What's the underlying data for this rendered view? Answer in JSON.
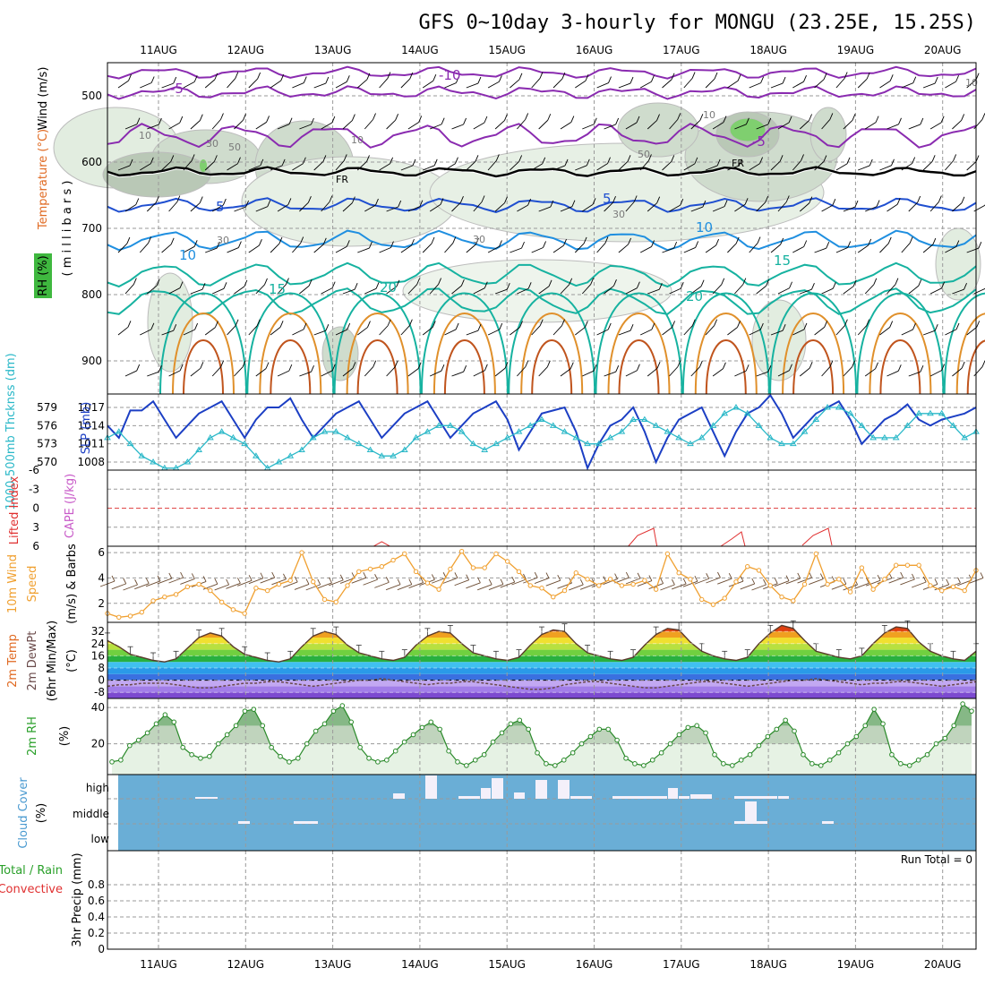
{
  "title": "GFS 0~10day 3-hourly for MONGU (23.25E, 15.25S)",
  "dates": [
    "11AUG",
    "12AUG",
    "13AUG",
    "14AUG",
    "15AUG",
    "16AUG",
    "17AUG",
    "18AUG",
    "19AUG",
    "20AUG"
  ],
  "chart_data": [
    {
      "panel": "upper-air",
      "type": "contour",
      "ylabel_wind": "Wind (m/s)",
      "ylabel_temp": "Temperature (°C)",
      "ylabel_rh": "RH (%)",
      "ylabel_pressure": "( m i l l i b a r s )",
      "ylim": [
        950,
        450
      ],
      "yticks": [
        500,
        600,
        700,
        800,
        900
      ],
      "freezing_label": "FR",
      "temperature_labels": [
        "-10",
        "-5",
        "-5",
        "5",
        "5",
        "10",
        "10",
        "15",
        "15",
        "20",
        "20"
      ],
      "rh_labels": [
        "10",
        "10",
        "10",
        "10",
        "30",
        "30",
        "30",
        "30",
        "50",
        "50"
      ],
      "rh_shading_levels": [
        10,
        30,
        50,
        70
      ]
    },
    {
      "panel": "pressure",
      "type": "line",
      "ylabel_thick": "1000-500mb Thcknss (dm)",
      "ylabel_slp": "SLP (mb)",
      "thickness_ticks": [
        "570",
        "573",
        "576",
        "579"
      ],
      "slp_ticks": [
        "1008",
        "1011",
        "1014",
        "1017"
      ],
      "series": [
        {
          "name": "SLP",
          "values": [
            1014,
            1012,
            1016.5,
            1016.5,
            1018,
            1015,
            1012,
            1014,
            1016,
            1017,
            1018,
            1015,
            1012,
            1015,
            1017,
            1017,
            1018.5,
            1015,
            1012,
            1014,
            1016,
            1017,
            1018,
            1015,
            1012,
            1014,
            1016,
            1017,
            1018,
            1015,
            1012,
            1014,
            1016,
            1017,
            1018,
            1015,
            1010,
            1013,
            1016,
            1016.5,
            1017,
            1013,
            1007,
            1011,
            1014,
            1015,
            1017,
            1013,
            1008,
            1012,
            1015,
            1016,
            1017,
            1013,
            1009,
            1013,
            1016,
            1017,
            1019,
            1016,
            1012,
            1014,
            1016,
            1017,
            1018,
            1015,
            1011,
            1013,
            1015,
            1016,
            1017.5,
            1015,
            1014,
            1015,
            1015.5,
            1016,
            1017
          ]
        },
        {
          "name": "Thickness",
          "values": [
            574,
            575,
            573,
            571,
            570,
            569,
            569,
            570,
            572,
            574,
            575,
            574,
            573,
            571,
            569,
            570,
            571,
            572,
            574,
            575,
            575,
            574,
            573,
            572,
            571,
            571,
            572,
            574,
            575,
            576,
            576,
            575,
            573,
            572,
            573,
            574,
            575,
            576,
            577,
            576,
            575,
            574,
            573,
            573,
            574,
            575,
            577,
            577,
            576,
            575,
            574,
            573,
            574,
            576,
            578,
            579,
            578,
            576,
            574,
            573,
            573,
            575,
            577,
            579,
            579,
            578,
            576,
            574,
            574,
            574,
            576,
            578,
            578,
            578,
            576,
            574,
            575
          ]
        }
      ]
    },
    {
      "panel": "instability",
      "type": "line",
      "ylabel_li": "Lifted Index",
      "ylabel_cape": "CAPE (J/kg)",
      "ylim": [
        6,
        -6
      ],
      "yticks": [
        "-6",
        "-3",
        "0",
        "3",
        "6"
      ],
      "series": [
        {
          "name": "Lifted Index",
          "values": [
            null,
            null,
            null,
            null,
            null,
            null,
            null,
            null,
            null,
            null,
            null,
            null,
            null,
            null,
            null,
            null,
            null,
            null,
            null,
            null,
            null,
            null,
            null,
            6.3,
            5.3,
            6.3,
            null,
            null,
            null,
            null,
            null,
            null,
            null,
            null,
            null,
            null,
            null,
            null,
            null,
            null,
            null,
            null,
            null,
            null,
            null,
            null,
            null,
            null,
            null,
            null,
            null,
            null,
            null,
            null,
            null,
            null,
            null,
            null,
            null,
            null,
            null,
            null,
            null,
            null,
            null,
            null,
            null,
            null,
            null,
            null,
            null,
            null,
            null,
            null,
            null,
            null,
            null
          ]
        }
      ]
    },
    {
      "panel": "wind10m",
      "type": "line",
      "ylabel_wind": "10m Wind",
      "ylabel_speed": "Speed",
      "ylabel_units": "(m/s) & Barbs",
      "ylim": [
        0.5,
        6.5
      ],
      "yticks": [
        "2",
        "4",
        "6"
      ],
      "series": [
        {
          "name": "Speed",
          "values": [
            1.2,
            0.9,
            1.0,
            1.3,
            2.2,
            2.5,
            2.7,
            3.3,
            3.5,
            3.0,
            2.1,
            1.5,
            1.2,
            3.2,
            3.0,
            3.5,
            3.8,
            6.0,
            3.7,
            2.3,
            2.1,
            3.4,
            4.5,
            4.7,
            4.9,
            5.4,
            5.9,
            4.5,
            3.6,
            3.1,
            4.7,
            6.1,
            4.8,
            4.8,
            5.9,
            5.3,
            4.5,
            3.4,
            3.2,
            2.5,
            3.0,
            4.4,
            3.9,
            3.4,
            3.9,
            3.4,
            3.5,
            3.8,
            3.1,
            5.9,
            4.4,
            3.9,
            2.3,
            1.9,
            2.4,
            3.7,
            4.9,
            4.6,
            3.4,
            2.5,
            2.2,
            3.5,
            5.9,
            3.5,
            3.9,
            2.9,
            4.8,
            3.1,
            3.9,
            5.0,
            5.0,
            5.0,
            3.4,
            3.0,
            3.3,
            3.0,
            4.6
          ]
        }
      ]
    },
    {
      "panel": "temp2m",
      "type": "area",
      "ylabel_temp": "2m Temp",
      "ylabel_dewpt": "2m DewPt",
      "ylabel_minmax": "(6hr Min/Max)",
      "ylabel_units": "(°C)",
      "ylim": [
        -12,
        38
      ],
      "yticks": [
        "-8",
        "0",
        "8",
        "16",
        "24",
        "32"
      ],
      "series": [
        {
          "name": "2m Temp",
          "values": [
            26,
            22,
            17,
            15,
            13,
            12,
            14,
            21,
            28,
            31,
            29,
            22,
            17,
            15,
            13,
            12,
            14,
            22,
            29,
            32,
            30,
            23,
            18,
            16,
            14,
            13,
            15,
            23,
            29,
            32,
            31,
            24,
            18,
            16,
            14,
            13,
            15,
            23,
            30,
            33,
            32,
            24,
            18,
            16,
            14,
            13,
            15,
            23,
            30,
            34,
            33,
            25,
            19,
            16,
            14,
            13,
            15,
            24,
            31,
            36,
            34,
            26,
            19,
            17,
            15,
            14,
            16,
            24,
            31,
            35,
            34,
            25,
            19,
            16,
            14,
            13,
            19
          ]
        },
        {
          "name": "2m DewPt",
          "values": [
            -4,
            -3,
            -3,
            -2,
            -2,
            -2,
            -3,
            -4,
            -5,
            -5,
            -4,
            -3,
            -2,
            -2,
            -1,
            -1,
            -2,
            -3,
            -4,
            -3,
            -2,
            -1,
            0,
            0,
            1,
            0,
            -1,
            -2,
            -3,
            -2,
            -2,
            -1,
            -1,
            -2,
            -3,
            -4,
            -5,
            -6,
            -6,
            -5,
            -3,
            -2,
            -1,
            -1,
            -2,
            -3,
            -4,
            -5,
            -5,
            -4,
            -3,
            -2,
            -1,
            -1,
            -2,
            -3,
            -4,
            -3,
            -2,
            -1,
            0,
            0,
            1,
            0,
            -1,
            -2,
            -3,
            -2,
            -2,
            -1,
            -1,
            -2,
            -3,
            -4,
            -3,
            -2,
            -1
          ]
        }
      ]
    },
    {
      "panel": "rh2m",
      "type": "area",
      "ylabel_rh": "2m RH",
      "ylabel_units": "(%)",
      "ylim": [
        3,
        45
      ],
      "yticks": [
        "20",
        "40"
      ],
      "series": [
        {
          "name": "2m RH",
          "values": [
            10,
            11,
            19,
            22,
            26,
            31,
            36,
            32,
            18,
            14,
            12,
            13,
            20,
            25,
            30,
            38,
            39,
            30,
            18,
            13,
            10,
            12,
            20,
            27,
            31,
            38,
            41,
            32,
            18,
            12,
            10,
            11,
            16,
            21,
            25,
            29,
            32,
            28,
            16,
            10,
            8,
            11,
            14,
            21,
            26,
            31,
            33,
            28,
            15,
            9,
            8,
            11,
            15,
            20,
            24,
            28,
            28,
            22,
            12,
            9,
            8,
            11,
            15,
            20,
            25,
            29,
            30,
            26,
            14,
            9,
            8,
            11,
            14,
            19,
            24,
            28,
            33,
            27,
            14,
            9,
            8,
            11,
            15,
            20,
            24,
            30,
            39,
            31,
            14,
            9,
            8,
            11,
            14,
            20,
            23,
            30,
            42,
            38
          ]
        }
      ]
    },
    {
      "panel": "clouds",
      "type": "bar",
      "ylabel_cloud": "Cloud Cover",
      "ylabel_units": "(%)",
      "levels": [
        "high",
        "middle",
        "low"
      ]
    },
    {
      "panel": "precip",
      "type": "bar",
      "ylabel_precip": "3hr Precip (mm)",
      "ylabel_total": "Total / Rain",
      "ylabel_conv": "Convective",
      "run_total": "Run Total = 0",
      "ylim": [
        0,
        1
      ],
      "yticks": [
        "0",
        "0.2",
        "0.4",
        "0.6",
        "0.8"
      ]
    }
  ]
}
